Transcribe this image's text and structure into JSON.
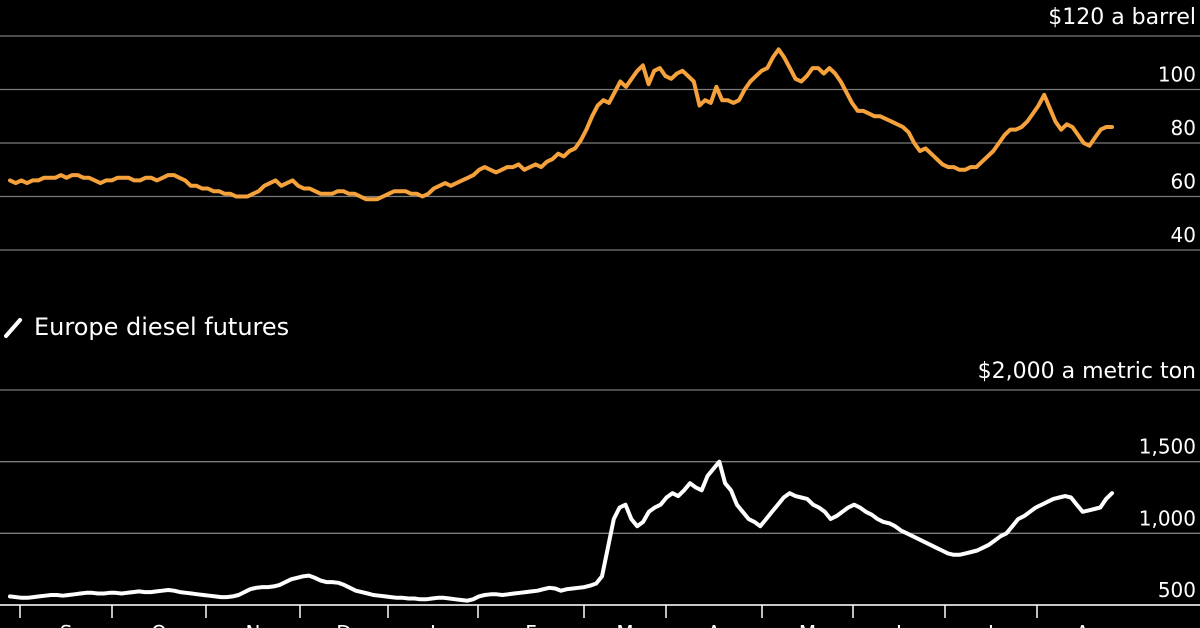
{
  "chart_data": [
    {
      "type": "line",
      "unit_label": "$120 a barrel",
      "y_ticks": [
        "100",
        "80",
        "60",
        "40"
      ],
      "y_tick_values": [
        100,
        80,
        60,
        40
      ],
      "ylim": [
        40,
        120
      ],
      "grid": true,
      "series": [
        {
          "name": "",
          "color": "#f5a13c",
          "values": [
            66,
            65,
            66,
            65,
            66,
            66,
            67,
            67,
            67,
            68,
            67,
            68,
            68,
            67,
            67,
            66,
            65,
            66,
            66,
            67,
            67,
            67,
            66,
            66,
            67,
            67,
            66,
            67,
            68,
            68,
            67,
            66,
            64,
            64,
            63,
            63,
            62,
            62,
            61,
            61,
            60,
            60,
            60,
            61,
            62,
            64,
            65,
            66,
            64,
            65,
            66,
            64,
            63,
            63,
            62,
            61,
            61,
            61,
            62,
            62,
            61,
            61,
            60,
            59,
            59,
            59,
            60,
            61,
            62,
            62,
            62,
            61,
            61,
            60,
            61,
            63,
            64,
            65,
            64,
            65,
            66,
            67,
            68,
            70,
            71,
            70,
            69,
            70,
            71,
            71,
            72,
            70,
            71,
            72,
            71,
            73,
            74,
            76,
            75,
            77,
            78,
            81,
            85,
            90,
            94,
            96,
            95,
            99,
            103,
            101,
            104,
            107,
            109,
            102,
            107,
            108,
            105,
            104,
            106,
            107,
            105,
            103,
            94,
            96,
            95,
            101,
            96,
            96,
            95,
            96,
            100,
            103,
            105,
            107,
            108,
            112,
            115,
            112,
            108,
            104,
            103,
            105,
            108,
            108,
            106,
            108,
            106,
            103,
            99,
            95,
            92,
            92,
            91,
            90,
            90,
            89,
            88,
            87,
            86,
            84,
            80,
            77,
            78,
            76,
            74,
            72,
            71,
            71,
            70,
            70,
            71,
            71,
            73,
            75,
            77,
            80,
            83,
            85,
            85,
            86,
            88,
            91,
            94,
            98,
            93,
            88,
            85,
            87,
            86,
            83,
            80,
            79,
            82,
            85,
            86,
            86
          ]
        }
      ]
    },
    {
      "type": "line",
      "legend": "Europe diesel futures",
      "unit_label": "$2,000 a metric ton",
      "y_ticks": [
        "1,500",
        "1,000",
        "500"
      ],
      "y_tick_values": [
        1500,
        1000,
        500
      ],
      "ylim": [
        500,
        2000
      ],
      "grid": true,
      "series": [
        {
          "name": "Europe diesel futures",
          "color": "#ffffff",
          "values": [
            560,
            555,
            550,
            550,
            555,
            560,
            565,
            570,
            570,
            565,
            570,
            575,
            580,
            585,
            585,
            580,
            580,
            585,
            585,
            580,
            585,
            590,
            595,
            590,
            590,
            595,
            600,
            605,
            600,
            590,
            585,
            580,
            575,
            570,
            565,
            560,
            555,
            555,
            560,
            570,
            590,
            610,
            620,
            625,
            625,
            630,
            640,
            660,
            680,
            690,
            700,
            705,
            690,
            670,
            660,
            660,
            655,
            640,
            620,
            600,
            590,
            580,
            570,
            565,
            560,
            555,
            550,
            550,
            545,
            545,
            540,
            540,
            545,
            550,
            550,
            545,
            540,
            535,
            530,
            540,
            560,
            570,
            575,
            575,
            570,
            575,
            580,
            585,
            590,
            595,
            600,
            610,
            620,
            615,
            600,
            610,
            615,
            620,
            625,
            635,
            650,
            700,
            900,
            1100,
            1180,
            1200,
            1100,
            1050,
            1080,
            1150,
            1180,
            1200,
            1250,
            1280,
            1260,
            1300,
            1350,
            1320,
            1300,
            1400,
            1450,
            1500,
            1350,
            1300,
            1200,
            1150,
            1100,
            1080,
            1050,
            1100,
            1150,
            1200,
            1250,
            1280,
            1260,
            1250,
            1240,
            1200,
            1180,
            1150,
            1100,
            1120,
            1150,
            1180,
            1200,
            1180,
            1150,
            1130,
            1100,
            1080,
            1070,
            1050,
            1020,
            1000,
            980,
            960,
            940,
            920,
            900,
            880,
            860,
            850,
            850,
            860,
            870,
            880,
            900,
            920,
            950,
            980,
            1000,
            1050,
            1100,
            1120,
            1150,
            1180,
            1200,
            1220,
            1240,
            1250,
            1260,
            1250,
            1200,
            1150,
            1160,
            1170,
            1180,
            1240,
            1280
          ]
        }
      ]
    }
  ],
  "x_ticks": [
    "S",
    "O",
    "N",
    "D",
    "J",
    "F",
    "M",
    "A",
    "M",
    "J",
    "J",
    "A"
  ]
}
